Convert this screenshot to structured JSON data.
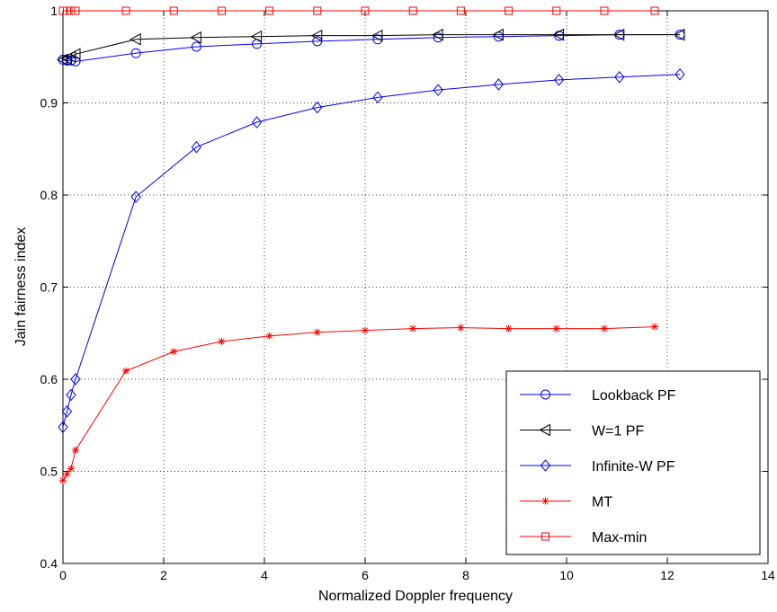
{
  "chart_data": {
    "type": "line",
    "title": "",
    "xlabel": "Normalized Doppler frequency",
    "ylabel": "Jain fairness index",
    "xlim": [
      0,
      14
    ],
    "ylim": [
      0.4,
      1.0
    ],
    "xticks": [
      0,
      2,
      4,
      6,
      8,
      10,
      12,
      14
    ],
    "yticks": [
      0.4,
      0.5,
      0.6,
      0.7,
      0.8,
      0.9,
      1
    ],
    "xtick_labels": [
      "0",
      "2",
      "4",
      "6",
      "8",
      "10",
      "12",
      "14"
    ],
    "ytick_labels": [
      "0.4",
      "0.5",
      "0.6",
      "0.7",
      "0.8",
      "0.9",
      "1"
    ],
    "grid": true,
    "legend_position": "bottom-right",
    "series": [
      {
        "name": "Lookback PF",
        "color": "#0000ff",
        "marker": "circle",
        "x": [
          0.0,
          0.08,
          0.16,
          0.25,
          1.45,
          2.65,
          3.85,
          5.05,
          6.25,
          7.45,
          8.65,
          9.85,
          11.05,
          12.25
        ],
        "y": [
          0.947,
          0.946,
          0.946,
          0.945,
          0.954,
          0.961,
          0.964,
          0.967,
          0.969,
          0.971,
          0.972,
          0.973,
          0.974,
          0.974
        ]
      },
      {
        "name": "W=1 PF",
        "color": "#000000",
        "marker": "triangle-left",
        "x": [
          0.0,
          0.08,
          0.16,
          0.25,
          1.45,
          2.65,
          3.85,
          5.05,
          6.25,
          7.45,
          8.65,
          9.85,
          11.05,
          12.25
        ],
        "y": [
          0.947,
          0.948,
          0.95,
          0.953,
          0.969,
          0.971,
          0.972,
          0.973,
          0.973,
          0.974,
          0.974,
          0.974,
          0.974,
          0.974
        ]
      },
      {
        "name": "Infinite-W PF",
        "color": "#0000ff",
        "marker": "diamond",
        "x": [
          0.0,
          0.08,
          0.16,
          0.25,
          1.45,
          2.65,
          3.85,
          5.05,
          6.25,
          7.45,
          8.65,
          9.85,
          11.05,
          12.25
        ],
        "y": [
          0.548,
          0.565,
          0.583,
          0.6,
          0.798,
          0.852,
          0.879,
          0.895,
          0.906,
          0.914,
          0.92,
          0.925,
          0.928,
          0.931
        ]
      },
      {
        "name": "MT",
        "color": "#ff0000",
        "marker": "asterisk",
        "x": [
          0.0,
          0.08,
          0.16,
          0.25,
          1.25,
          2.2,
          3.15,
          4.1,
          5.05,
          6.0,
          6.95,
          7.9,
          8.85,
          9.8,
          10.75,
          11.75
        ],
        "y": [
          0.49,
          0.497,
          0.503,
          0.523,
          0.609,
          0.63,
          0.641,
          0.647,
          0.651,
          0.653,
          0.655,
          0.656,
          0.655,
          0.655,
          0.655,
          0.657
        ]
      },
      {
        "name": "Max-min",
        "color": "#ff0000",
        "marker": "square",
        "x": [
          0.0,
          0.08,
          0.16,
          0.25,
          1.25,
          2.2,
          3.15,
          4.1,
          5.05,
          6.0,
          6.95,
          7.9,
          8.85,
          9.8,
          10.75,
          11.75
        ],
        "y": [
          1,
          1,
          1,
          1,
          1,
          1,
          1,
          1,
          1,
          1,
          1,
          1,
          1,
          1,
          1,
          1
        ]
      }
    ]
  }
}
